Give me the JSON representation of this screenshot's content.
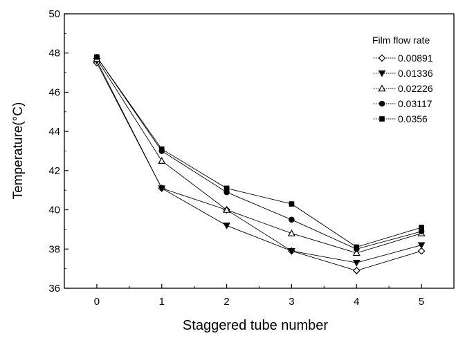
{
  "chart_data": {
    "type": "line",
    "xlabel": "Staggered tube number",
    "ylabel": "Temperature(°C)",
    "xlim": [
      -0.5,
      5.5
    ],
    "ylim": [
      36,
      50
    ],
    "xticks": [
      0,
      1,
      2,
      3,
      4,
      5
    ],
    "yticks": [
      36,
      38,
      40,
      42,
      44,
      46,
      48,
      50
    ],
    "x": [
      0,
      1,
      2,
      3,
      4,
      5
    ],
    "legend_title": "Film flow rate",
    "legend_position": "top-right",
    "grid": false,
    "series": [
      {
        "name": "0.00891",
        "marker": "diamond-open",
        "values": [
          47.5,
          41.1,
          40.0,
          37.9,
          36.9,
          37.9
        ]
      },
      {
        "name": "0.01336",
        "marker": "triangle-down-filled",
        "values": [
          47.6,
          41.1,
          39.2,
          37.9,
          37.3,
          38.2
        ]
      },
      {
        "name": "0.02226",
        "marker": "triangle-up-open",
        "values": [
          47.7,
          42.5,
          40.0,
          38.8,
          37.8,
          38.8
        ]
      },
      {
        "name": "0.03117",
        "marker": "circle-filled",
        "values": [
          47.8,
          43.0,
          40.9,
          39.5,
          38.0,
          38.9
        ]
      },
      {
        "name": "0.0356",
        "marker": "square-filled",
        "values": [
          47.8,
          43.1,
          41.1,
          40.3,
          38.1,
          39.1
        ]
      }
    ]
  }
}
